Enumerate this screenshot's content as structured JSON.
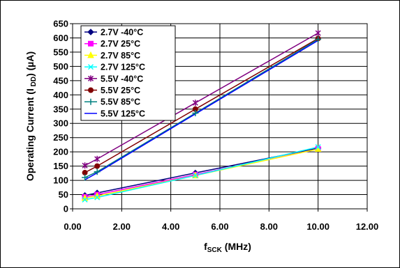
{
  "chart_data": {
    "type": "line",
    "xlabel_main": "f",
    "xlabel_sub": "SCK",
    "xlabel_unit": " (MHz)",
    "ylabel_main": "Operating Current (I",
    "ylabel_sub": " DD",
    "ylabel_unit": ") (µA)",
    "xlim": [
      0,
      12
    ],
    "ylim": [
      0,
      650
    ],
    "x_ticks": [
      "0.00",
      "2.00",
      "4.00",
      "6.00",
      "8.00",
      "10.00",
      "12.00"
    ],
    "x_tick_values": [
      0,
      2,
      4,
      6,
      8,
      10,
      12
    ],
    "y_ticks": [
      "0",
      "50",
      "100",
      "150",
      "200",
      "250",
      "300",
      "350",
      "400",
      "450",
      "500",
      "550",
      "600",
      "650"
    ],
    "y_tick_values": [
      0,
      50,
      100,
      150,
      200,
      250,
      300,
      350,
      400,
      450,
      500,
      550,
      600,
      650
    ],
    "grid": true,
    "legend_position": "top-left",
    "x": [
      0.5,
      1,
      5,
      10
    ],
    "series": [
      {
        "name": "2.7V -40°C",
        "color": "#000080",
        "marker": "diamond",
        "values": [
          47,
          56,
          126,
          213
        ]
      },
      {
        "name": "2.7V 25°C",
        "color": "#ff00ff",
        "marker": "square",
        "values": [
          42,
          50,
          120,
          210
        ]
      },
      {
        "name": "2.7V 85°C",
        "color": "#ffff00",
        "marker": "triangle",
        "values": [
          38,
          45,
          117,
          210
        ]
      },
      {
        "name": "2.7V 125°C",
        "color": "#00ffff",
        "marker": "x",
        "values": [
          32,
          40,
          117,
          217
        ]
      },
      {
        "name": "5.5V -40°C",
        "color": "#800080",
        "marker": "star",
        "values": [
          152,
          175,
          372,
          617
        ]
      },
      {
        "name": "5.5V 25°C",
        "color": "#800000",
        "marker": "circle",
        "values": [
          127,
          150,
          350,
          598
        ]
      },
      {
        "name": "5.5V 85°C",
        "color": "#008080",
        "marker": "plus",
        "values": [
          110,
          130,
          336,
          595
        ]
      },
      {
        "name": "5.5V 125°C",
        "color": "#0000ff",
        "marker": "none",
        "values": [
          102,
          126,
          333,
          591
        ]
      }
    ]
  }
}
